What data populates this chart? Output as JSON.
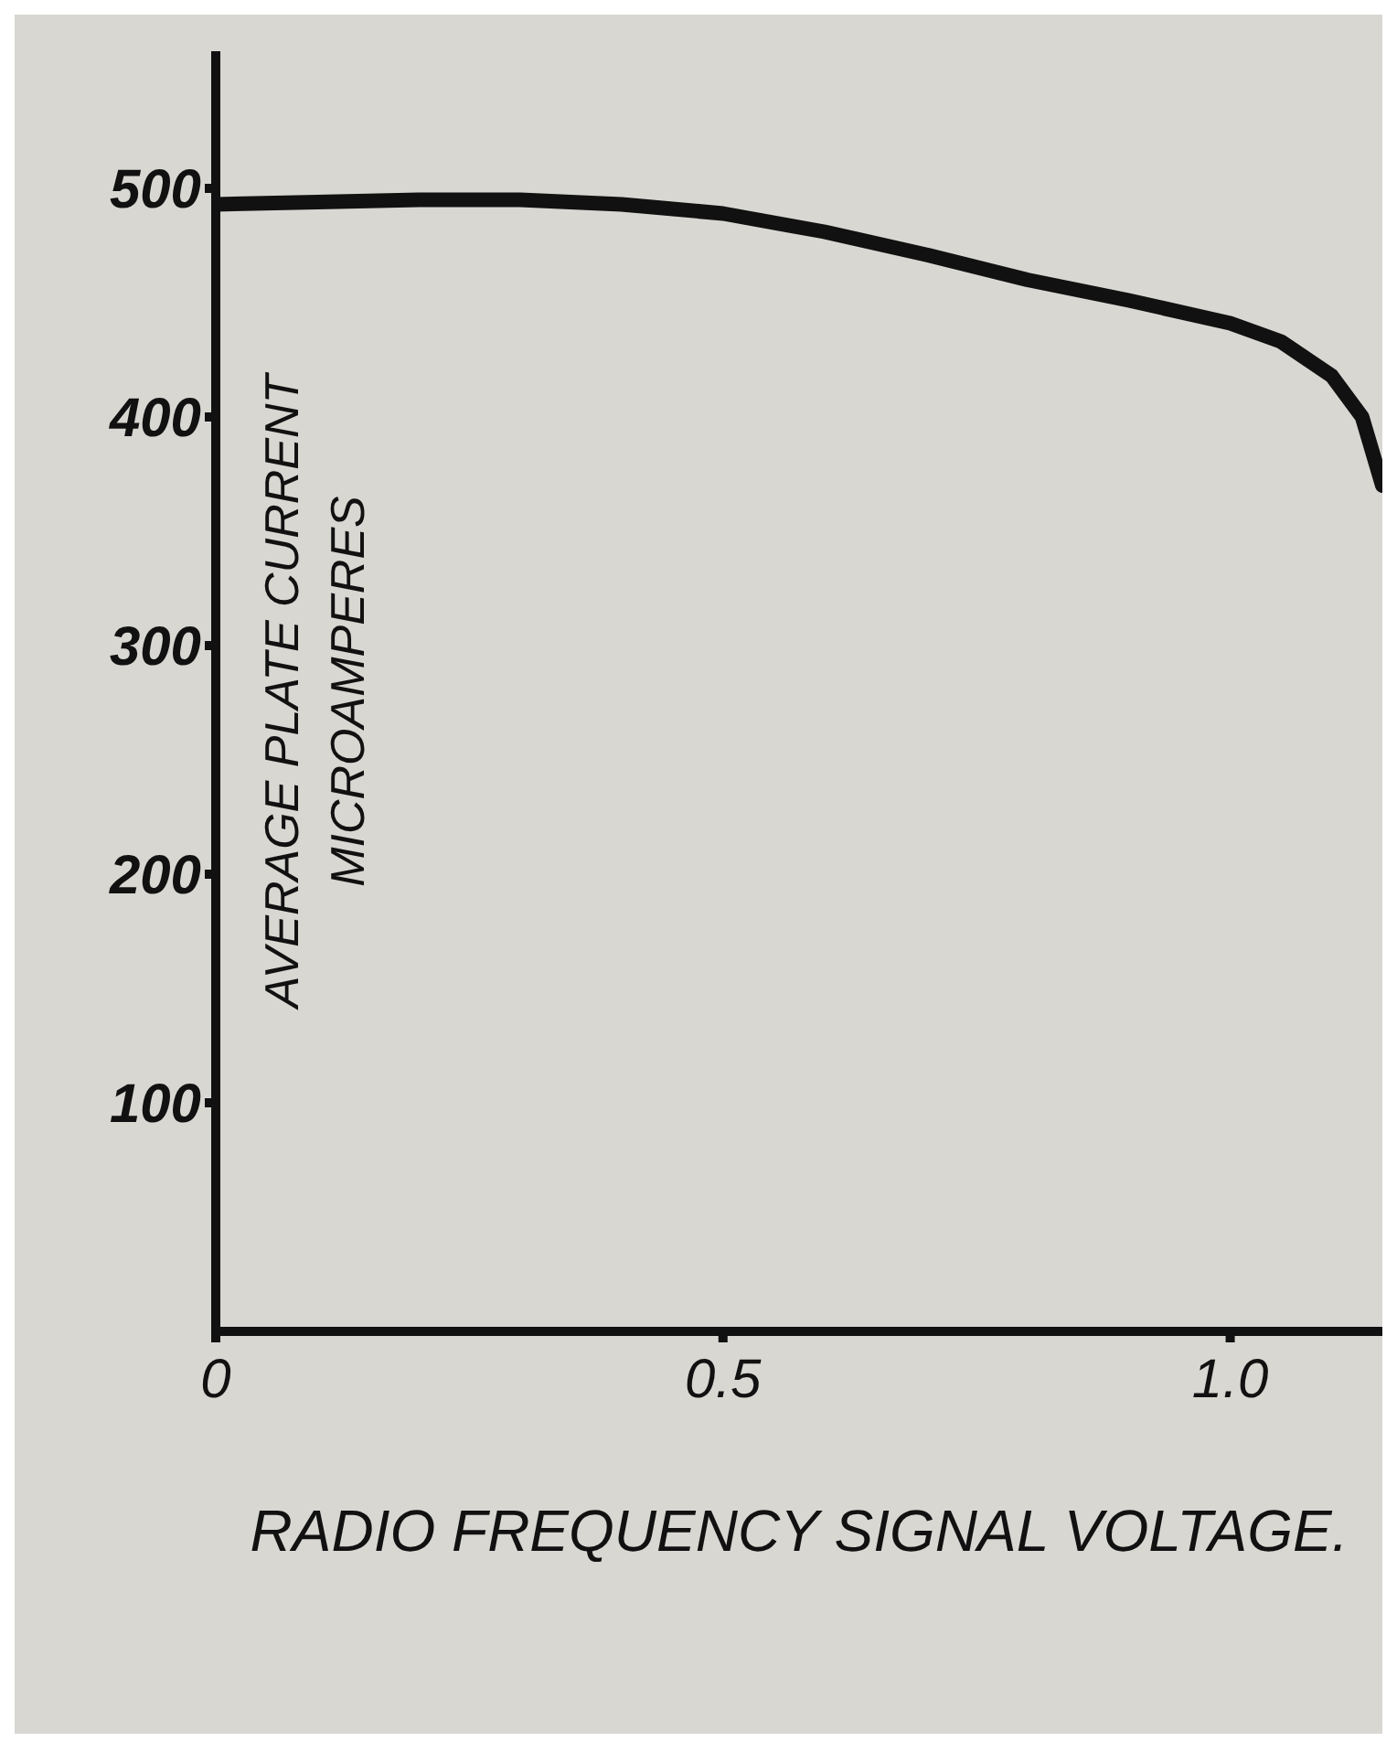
{
  "chart_data": {
    "type": "line",
    "xlabel": "RADIO FREQUENCY SIGNAL VOLTAGE.",
    "ylabel": "AVERAGE PLATE CURRENT MICROAMPERES",
    "x": [
      0,
      0.1,
      0.2,
      0.3,
      0.4,
      0.5,
      0.6,
      0.7,
      0.8,
      0.9,
      1.0,
      1.05,
      1.1,
      1.13,
      1.15
    ],
    "series": [
      {
        "color": "#111111",
        "values": [
          493,
          494,
          495,
          495,
          493,
          489,
          481,
          471,
          460,
          451,
          441,
          433,
          418,
          400,
          370
        ]
      }
    ],
    "xlim": [
      0,
      1.15
    ],
    "xticks": [
      0,
      0.5,
      {
        "value": 1,
        "label": "1.0"
      }
    ],
    "ylim": [
      0,
      560
    ],
    "yticks": [
      100,
      200,
      300,
      400,
      500
    ],
    "grid": false,
    "legend": false,
    "marker": "none",
    "line_style": "solid"
  }
}
